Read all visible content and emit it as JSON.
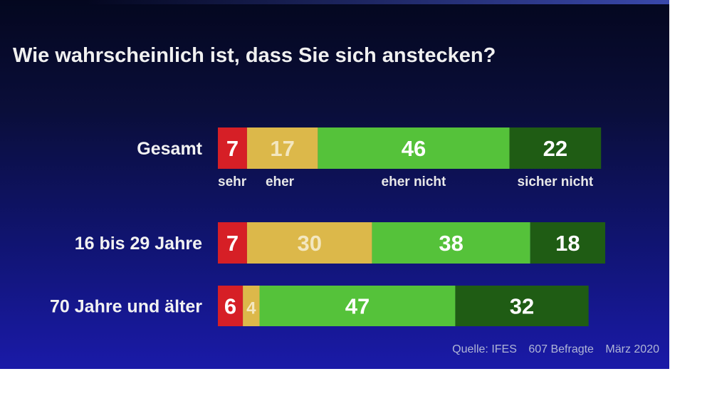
{
  "title": "Wie wahrscheinlich ist, dass Sie sich anstecken?",
  "source": {
    "quelle": "Quelle: IFES",
    "befragte": "607 Befragte",
    "datum": "März 2020"
  },
  "colors": {
    "sehr": "#d61f26",
    "eher": "#dcb84a",
    "eher_nicht": "#55c23a",
    "sicher_nicht": "#1f5c14"
  },
  "chart_data": {
    "type": "bar",
    "orientation": "horizontal-stacked-100",
    "title": "Wie wahrscheinlich ist, dass Sie sich anstecken?",
    "categories": [
      "Gesamt",
      "16 bis 29 Jahre",
      "70 Jahre und älter"
    ],
    "series": [
      {
        "name": "sehr",
        "values": [
          7,
          7,
          6
        ]
      },
      {
        "name": "eher",
        "values": [
          17,
          30,
          4
        ]
      },
      {
        "name": "eher nicht",
        "values": [
          46,
          38,
          47
        ]
      },
      {
        "name": "sicher nicht",
        "values": [
          22,
          18,
          32
        ]
      }
    ],
    "segment_labels_shown": [
      [
        "7",
        "17",
        "46",
        "22"
      ],
      [
        "7",
        "30",
        "38",
        "18"
      ],
      [
        "6",
        "4",
        "47",
        "32"
      ]
    ],
    "legend_placement": "below-first-bar",
    "grid": false
  }
}
